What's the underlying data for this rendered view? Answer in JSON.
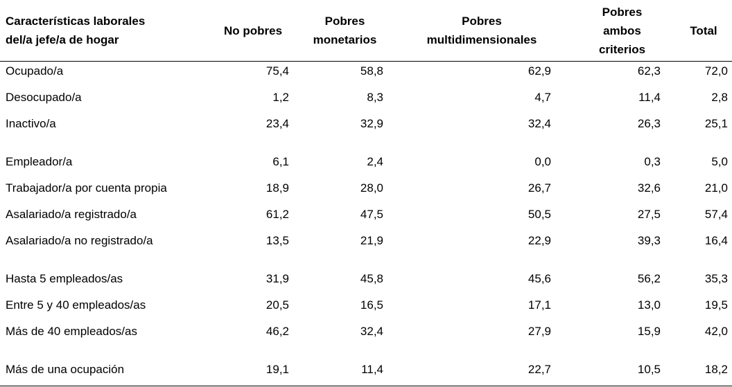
{
  "table": {
    "header": [
      [
        "Características laborales",
        "del/a jefe/a de hogar"
      ],
      [
        "No pobres"
      ],
      [
        "Pobres",
        "monetarios"
      ],
      [
        "Pobres",
        "multidimensionales"
      ],
      [
        "Pobres",
        "ambos",
        "criterios"
      ],
      [
        "Total"
      ]
    ],
    "groups": [
      [
        {
          "label": "Ocupado/a",
          "values": [
            "75,4",
            "58,8",
            "62,9",
            "62,3",
            "72,0"
          ]
        },
        {
          "label": "Desocupado/a",
          "values": [
            "1,2",
            "8,3",
            "4,7",
            "11,4",
            "2,8"
          ]
        },
        {
          "label": "Inactivo/a",
          "values": [
            "23,4",
            "32,9",
            "32,4",
            "26,3",
            "25,1"
          ]
        }
      ],
      [
        {
          "label": "Empleador/a",
          "values": [
            "6,1",
            "2,4",
            "0,0",
            "0,3",
            "5,0"
          ]
        },
        {
          "label": "Trabajador/a por cuenta propia",
          "values": [
            "18,9",
            "28,0",
            "26,7",
            "32,6",
            "21,0"
          ]
        },
        {
          "label": "Asalariado/a registrado/a",
          "values": [
            "61,2",
            "47,5",
            "50,5",
            "27,5",
            "57,4"
          ]
        },
        {
          "label": "Asalariado/a no registrado/a",
          "values": [
            "13,5",
            "21,9",
            "22,9",
            "39,3",
            "16,4"
          ]
        }
      ],
      [
        {
          "label": "Hasta 5 empleados/as",
          "values": [
            "31,9",
            "45,8",
            "45,6",
            "56,2",
            "35,3"
          ]
        },
        {
          "label": "Entre 5 y 40 empleados/as",
          "values": [
            "20,5",
            "16,5",
            "17,1",
            "13,0",
            "19,5"
          ]
        },
        {
          "label": "Más de 40 empleados/as",
          "values": [
            "46,2",
            "32,4",
            "27,9",
            "15,9",
            "42,0"
          ]
        }
      ],
      [
        {
          "label": "Más de una ocupación",
          "values": [
            "19,1",
            "11,4",
            "22,7",
            "10,5",
            "18,2"
          ]
        }
      ]
    ]
  }
}
